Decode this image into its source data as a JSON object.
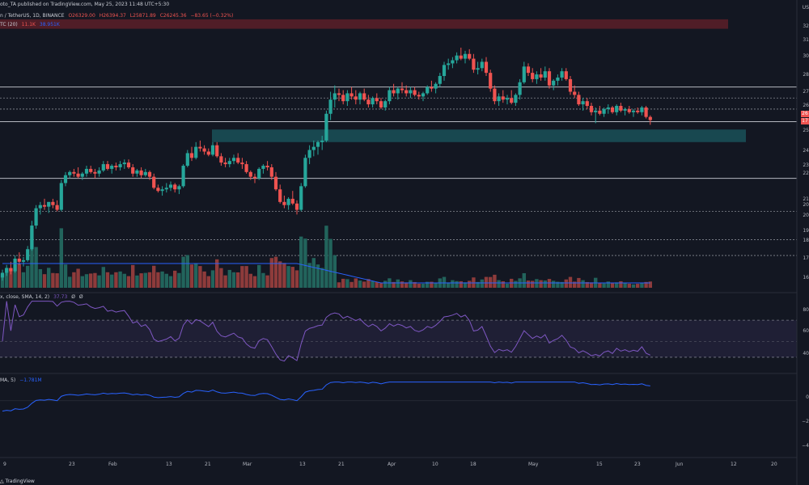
{
  "header": {
    "published_line": "oto_TA published on TradingView.com, May 25, 2023 11:48 UTC+5:30",
    "symbol_line": "n / TetherUS, 1D, BINANCE",
    "ohlc": [
      "O26329.00",
      "H26394.37",
      "L25871.89",
      "C26245.36",
      "−83.65 (−0.32%)"
    ],
    "volume_label": "TC (20)",
    "volume_values": [
      "11.1K",
      "38.951K"
    ],
    "rsi_label": "x, close, SMA, 14, 2)",
    "rsi_values": [
      "37.73",
      "Ø",
      "Ø"
    ],
    "obv_label": "MA, 5)",
    "obv_value": "−1.781M"
  },
  "price_axis": [
    "32",
    "31",
    "30",
    "28",
    "27",
    "26",
    "26",
    "25",
    "24",
    "23",
    "22",
    "21",
    "20",
    "20",
    "19",
    "18",
    "17",
    "16"
  ],
  "price_tags": [
    "26",
    "17"
  ],
  "rsi_axis": [
    "80",
    "60",
    "40"
  ],
  "obv_axis": [
    "0",
    "−2",
    "−4"
  ],
  "time_axis": [
    "9",
    "23",
    "Feb",
    "13",
    "21",
    "Mar",
    "13",
    "21",
    "Apr",
    "10",
    "18",
    "May",
    "15",
    "23",
    "Jun",
    "12",
    "20"
  ],
  "usd_label": "US",
  "footer_brand": "TradingView",
  "colors": {
    "background": "#131722",
    "up": "#26a69a",
    "down": "#ef5350",
    "volume_up": "#22645c",
    "volume_down": "#8e3b3b",
    "support_zone": "#1a4e55",
    "resistance_zone": "#5c1e28",
    "rsi_line": "#7e57c2",
    "obv_line": "#2962ff",
    "horizontal_line": "#d1d4dc"
  },
  "chart_data": {
    "type": "candlestick",
    "ohlc": [
      [
        0,
        16.2,
        16.7,
        16.0,
        16.5
      ],
      [
        1,
        16.5,
        17.0,
        16.3,
        16.8
      ],
      [
        2,
        16.8,
        17.2,
        16.4,
        16.6
      ],
      [
        3,
        16.6,
        17.6,
        16.5,
        17.4
      ],
      [
        4,
        17.4,
        17.8,
        17.0,
        17.2
      ],
      [
        5,
        17.2,
        17.5,
        16.9,
        17.3
      ],
      [
        6,
        17.3,
        18.2,
        17.2,
        18.0
      ],
      [
        7,
        18.0,
        19.8,
        17.9,
        19.5
      ],
      [
        8,
        19.5,
        20.8,
        19.3,
        20.6
      ],
      [
        9,
        20.6,
        21.0,
        20.2,
        20.8
      ],
      [
        10,
        20.8,
        21.2,
        20.5,
        20.7
      ],
      [
        11,
        20.7,
        21.0,
        20.3,
        21.0
      ],
      [
        12,
        21.0,
        21.2,
        20.6,
        20.8
      ],
      [
        13,
        20.8,
        21.1,
        20.4,
        20.5
      ],
      [
        14,
        20.5,
        22.4,
        20.4,
        22.2
      ],
      [
        15,
        22.2,
        22.9,
        22.0,
        22.7
      ],
      [
        16,
        22.7,
        23.0,
        22.5,
        22.9
      ],
      [
        17,
        22.9,
        23.1,
        22.6,
        22.8
      ],
      [
        18,
        22.8,
        23.2,
        22.5,
        22.6
      ],
      [
        19,
        22.6,
        22.9,
        22.4,
        22.8
      ],
      [
        20,
        22.8,
        23.3,
        22.6,
        23.1
      ],
      [
        21,
        23.1,
        23.3,
        22.8,
        22.9
      ],
      [
        22,
        22.9,
        23.1,
        22.5,
        22.8
      ],
      [
        23,
        22.8,
        23.2,
        22.6,
        23.0
      ],
      [
        24,
        23.0,
        23.6,
        22.9,
        23.4
      ],
      [
        25,
        23.4,
        23.6,
        23.0,
        23.1
      ],
      [
        26,
        23.1,
        23.4,
        22.8,
        23.3
      ],
      [
        27,
        23.3,
        23.5,
        23.0,
        23.2
      ],
      [
        28,
        23.2,
        23.6,
        23.0,
        23.4
      ],
      [
        29,
        23.4,
        23.7,
        23.1,
        23.5
      ],
      [
        30,
        23.5,
        23.7,
        23.1,
        23.2
      ],
      [
        31,
        23.2,
        23.4,
        22.6,
        22.8
      ],
      [
        32,
        22.8,
        23.1,
        22.6,
        23.0
      ],
      [
        33,
        23.0,
        23.2,
        22.5,
        22.7
      ],
      [
        34,
        22.7,
        23.1,
        22.6,
        22.9
      ],
      [
        35,
        22.9,
        23.0,
        22.4,
        22.6
      ],
      [
        36,
        22.6,
        22.8,
        21.8,
        21.9
      ],
      [
        37,
        21.9,
        22.1,
        21.6,
        21.7
      ],
      [
        38,
        21.7,
        22.0,
        21.4,
        21.8
      ],
      [
        39,
        21.8,
        22.2,
        21.6,
        21.9
      ],
      [
        40,
        21.9,
        22.3,
        21.7,
        22.1
      ],
      [
        41,
        22.1,
        22.2,
        21.6,
        21.8
      ],
      [
        42,
        21.8,
        22.1,
        21.5,
        22.0
      ],
      [
        43,
        22.0,
        23.4,
        21.9,
        23.3
      ],
      [
        44,
        23.3,
        24.3,
        23.2,
        24.1
      ],
      [
        45,
        24.1,
        24.5,
        23.6,
        23.8
      ],
      [
        46,
        23.8,
        24.8,
        23.7,
        24.5
      ],
      [
        47,
        24.5,
        24.9,
        24.2,
        24.4
      ],
      [
        48,
        24.4,
        24.6,
        24.0,
        24.2
      ],
      [
        49,
        24.2,
        24.4,
        23.9,
        24.0
      ],
      [
        50,
        24.0,
        24.8,
        23.9,
        24.6
      ],
      [
        51,
        24.6,
        24.8,
        23.8,
        23.9
      ],
      [
        52,
        23.9,
        24.1,
        23.3,
        23.5
      ],
      [
        53,
        23.5,
        23.8,
        23.2,
        23.4
      ],
      [
        54,
        23.4,
        23.8,
        23.2,
        23.6
      ],
      [
        55,
        23.6,
        24.0,
        23.4,
        23.8
      ],
      [
        56,
        23.8,
        24.1,
        23.4,
        23.5
      ],
      [
        57,
        23.5,
        23.8,
        23.1,
        23.4
      ],
      [
        58,
        23.4,
        23.6,
        22.8,
        22.9
      ],
      [
        59,
        22.9,
        23.0,
        22.4,
        22.6
      ],
      [
        60,
        22.6,
        22.8,
        22.2,
        22.5
      ],
      [
        61,
        22.5,
        23.2,
        22.4,
        23.1
      ],
      [
        62,
        23.1,
        23.4,
        22.8,
        23.3
      ],
      [
        63,
        23.3,
        23.6,
        23.0,
        23.2
      ],
      [
        64,
        23.2,
        23.4,
        22.4,
        22.6
      ],
      [
        65,
        22.6,
        22.9,
        21.7,
        21.8
      ],
      [
        66,
        21.8,
        22.1,
        20.9,
        21.0
      ],
      [
        67,
        21.0,
        21.4,
        20.6,
        20.8
      ],
      [
        68,
        20.8,
        21.3,
        20.5,
        21.2
      ],
      [
        69,
        21.2,
        21.7,
        20.8,
        20.9
      ],
      [
        70,
        20.9,
        21.1,
        20.2,
        20.5
      ],
      [
        71,
        20.5,
        22.2,
        20.4,
        22.0
      ],
      [
        72,
        22.0,
        24.0,
        21.9,
        23.8
      ],
      [
        73,
        23.8,
        24.6,
        23.4,
        24.3
      ],
      [
        74,
        24.3,
        24.9,
        23.9,
        24.5
      ],
      [
        75,
        24.5,
        24.9,
        24.0,
        24.8
      ],
      [
        76,
        24.8,
        25.2,
        24.3,
        24.9
      ],
      [
        77,
        24.9,
        26.8,
        24.8,
        26.6
      ],
      [
        78,
        26.6,
        28.0,
        26.2,
        27.5
      ],
      [
        79,
        27.5,
        28.4,
        27.0,
        27.9
      ],
      [
        80,
        27.9,
        28.2,
        27.4,
        27.8
      ],
      [
        81,
        27.8,
        28.1,
        27.2,
        27.4
      ],
      [
        82,
        27.4,
        28.1,
        27.1,
        27.9
      ],
      [
        83,
        27.9,
        28.3,
        27.5,
        27.7
      ],
      [
        84,
        27.7,
        28.1,
        27.2,
        27.5
      ],
      [
        85,
        27.5,
        28.0,
        27.2,
        27.9
      ],
      [
        86,
        27.9,
        28.2,
        27.4,
        27.5
      ],
      [
        87,
        27.5,
        27.8,
        27.0,
        27.2
      ],
      [
        88,
        27.2,
        27.7,
        27.0,
        27.6
      ],
      [
        89,
        27.6,
        27.9,
        27.2,
        27.4
      ],
      [
        90,
        27.4,
        27.6,
        26.9,
        27.0
      ],
      [
        91,
        27.0,
        27.5,
        26.8,
        27.4
      ],
      [
        92,
        27.4,
        28.3,
        27.2,
        28.1
      ],
      [
        93,
        28.1,
        28.5,
        27.7,
        27.9
      ],
      [
        94,
        27.9,
        28.3,
        27.5,
        28.2
      ],
      [
        95,
        28.2,
        28.6,
        27.9,
        28.1
      ],
      [
        96,
        28.1,
        28.4,
        27.7,
        27.9
      ],
      [
        97,
        27.9,
        28.3,
        27.6,
        28.1
      ],
      [
        98,
        28.1,
        28.3,
        27.7,
        27.8
      ],
      [
        99,
        27.8,
        28.0,
        27.5,
        27.7
      ],
      [
        100,
        27.7,
        28.0,
        27.4,
        27.9
      ],
      [
        101,
        27.9,
        28.4,
        27.8,
        28.3
      ],
      [
        102,
        28.3,
        28.7,
        28.0,
        28.2
      ],
      [
        103,
        28.2,
        28.6,
        27.9,
        28.5
      ],
      [
        104,
        28.5,
        29.2,
        28.3,
        29.0
      ],
      [
        105,
        29.0,
        29.9,
        28.7,
        29.7
      ],
      [
        106,
        29.7,
        30.1,
        29.4,
        29.8
      ],
      [
        107,
        29.8,
        30.2,
        29.5,
        30.0
      ],
      [
        108,
        30.0,
        30.5,
        29.8,
        30.3
      ],
      [
        109,
        30.3,
        30.8,
        30.0,
        30.1
      ],
      [
        110,
        30.1,
        30.6,
        29.8,
        30.4
      ],
      [
        111,
        30.4,
        30.7,
        30.0,
        30.1
      ],
      [
        112,
        30.1,
        30.4,
        29.2,
        29.4
      ],
      [
        113,
        29.4,
        29.9,
        29.1,
        29.5
      ],
      [
        114,
        29.5,
        30.1,
        29.3,
        29.9
      ],
      [
        115,
        29.9,
        30.2,
        29.0,
        29.2
      ],
      [
        116,
        29.2,
        29.4,
        28.0,
        28.2
      ],
      [
        117,
        28.2,
        28.4,
        27.2,
        27.4
      ],
      [
        118,
        27.4,
        27.9,
        27.1,
        27.7
      ],
      [
        119,
        27.7,
        28.1,
        27.3,
        27.5
      ],
      [
        120,
        27.5,
        27.8,
        27.2,
        27.6
      ],
      [
        121,
        27.6,
        28.1,
        27.2,
        27.3
      ],
      [
        122,
        27.3,
        27.9,
        27.1,
        27.8
      ],
      [
        123,
        27.8,
        28.8,
        27.5,
        28.6
      ],
      [
        124,
        28.6,
        29.9,
        28.5,
        29.6
      ],
      [
        125,
        29.6,
        29.8,
        29.0,
        29.2
      ],
      [
        126,
        29.2,
        29.5,
        28.6,
        28.8
      ],
      [
        127,
        28.8,
        29.3,
        28.5,
        29.1
      ],
      [
        128,
        29.1,
        29.5,
        28.7,
        28.9
      ],
      [
        129,
        28.9,
        29.6,
        28.7,
        29.3
      ],
      [
        130,
        29.3,
        29.5,
        28.2,
        28.4
      ],
      [
        131,
        28.4,
        28.8,
        28.1,
        28.7
      ],
      [
        132,
        28.7,
        29.1,
        28.4,
        28.9
      ],
      [
        133,
        28.9,
        29.5,
        28.7,
        29.3
      ],
      [
        134,
        29.3,
        29.5,
        28.7,
        28.8
      ],
      [
        135,
        28.8,
        29.0,
        27.8,
        28.0
      ],
      [
        136,
        28.0,
        28.4,
        27.6,
        27.8
      ],
      [
        137,
        27.8,
        28.0,
        27.1,
        27.2
      ],
      [
        138,
        27.2,
        27.6,
        26.8,
        27.4
      ],
      [
        139,
        27.4,
        27.6,
        26.9,
        27.1
      ],
      [
        140,
        27.1,
        27.3,
        26.5,
        26.7
      ],
      [
        141,
        26.7,
        27.0,
        26.0,
        26.8
      ],
      [
        142,
        26.8,
        27.1,
        26.5,
        26.6
      ],
      [
        143,
        26.6,
        27.0,
        26.4,
        26.9
      ],
      [
        144,
        26.9,
        27.2,
        26.6,
        27.0
      ],
      [
        145,
        27.0,
        27.1,
        26.6,
        26.7
      ],
      [
        146,
        26.7,
        27.2,
        26.5,
        27.1
      ],
      [
        147,
        27.1,
        27.3,
        26.7,
        26.8
      ],
      [
        148,
        26.8,
        27.0,
        26.5,
        26.9
      ],
      [
        149,
        26.9,
        27.1,
        26.6,
        26.7
      ],
      [
        150,
        26.7,
        26.9,
        26.4,
        26.8
      ],
      [
        151,
        26.8,
        27.0,
        26.6,
        26.7
      ],
      [
        152,
        26.7,
        27.1,
        26.5,
        27.0
      ],
      [
        153,
        27.0,
        27.1,
        26.3,
        26.4
      ],
      [
        154,
        26.4,
        26.5,
        25.9,
        26.2
      ]
    ],
    "price_ylim": [
      15.6,
      32.8
    ],
    "horizontal_levels": [
      28.3,
      27.6,
      26.9,
      26.1,
      22.5,
      20.4,
      18.6,
      17.6
    ],
    "support_zone": [
      24.8,
      25.6
    ],
    "resistance_zone": [
      32.0,
      32.6
    ],
    "volume_ylim": [
      0,
      100
    ],
    "rsi_ylim": [
      25,
      90
    ],
    "rsi_band": [
      35,
      70
    ],
    "rsi_midline": 50,
    "obv_ylim": [
      -5,
      2
    ]
  }
}
